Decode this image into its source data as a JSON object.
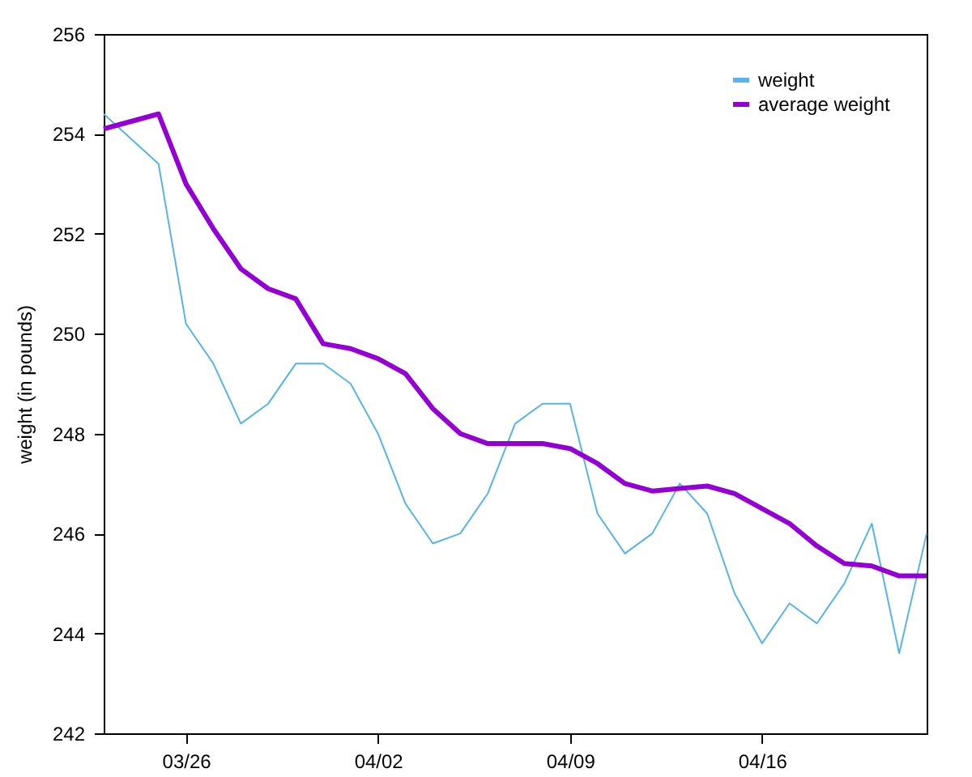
{
  "chart_data": {
    "type": "line",
    "ylabel": "weight (in pounds)",
    "x": [
      "--03-23",
      "--03-25",
      "--03-26",
      "--03-27",
      "--03-28",
      "--03-29",
      "--03-30",
      "--03-31",
      "--04-01",
      "--04-02",
      "--04-03",
      "--04-04",
      "--04-05",
      "--04-06",
      "--04-07",
      "--04-08",
      "--04-09",
      "--04-10",
      "--04-11",
      "--04-12",
      "--04-13",
      "--04-14",
      "--04-15",
      "--04-16",
      "--04-17",
      "--04-18",
      "--04-19",
      "--04-20",
      "--04-21",
      "--04-22"
    ],
    "series": [
      {
        "name": "weight",
        "color": "#56b4e9",
        "line_style": "solid",
        "values": [
          254.4,
          253.4,
          250.2,
          249.4,
          248.2,
          248.6,
          249.4,
          249.4,
          249.0,
          248.0,
          246.6,
          245.8,
          246.0,
          246.8,
          248.2,
          248.6,
          248.6,
          246.4,
          245.6,
          246.0,
          247.0,
          246.4,
          244.8,
          243.8,
          244.6,
          244.2,
          245.0,
          246.2,
          243.6,
          246.0
        ]
      },
      {
        "name": "average weight",
        "color": "#9400d3",
        "line_style": "solid",
        "values": [
          254.1,
          254.4,
          253.0,
          252.1,
          251.3,
          250.9,
          250.7,
          249.8,
          249.7,
          249.5,
          249.2,
          248.5,
          248.0,
          247.8,
          247.8,
          247.8,
          247.7,
          247.4,
          247.0,
          246.85,
          246.9,
          246.95,
          246.8,
          246.5,
          246.2,
          245.75,
          245.4,
          245.35,
          245.15,
          245.15
        ]
      }
    ],
    "xlim": [
      "--03-23",
      "--04-22"
    ],
    "xticks": [
      {
        "value": "--03-26",
        "label": "03/26"
      },
      {
        "value": "--04-02",
        "label": "04/02"
      },
      {
        "value": "--04-09",
        "label": "04/09"
      },
      {
        "value": "--04-16",
        "label": "04/16"
      }
    ],
    "ylim": [
      242,
      256
    ],
    "yticks": [
      242,
      244,
      246,
      248,
      250,
      252,
      254,
      256
    ],
    "grid": false,
    "legend": "top right",
    "marker": "none"
  }
}
